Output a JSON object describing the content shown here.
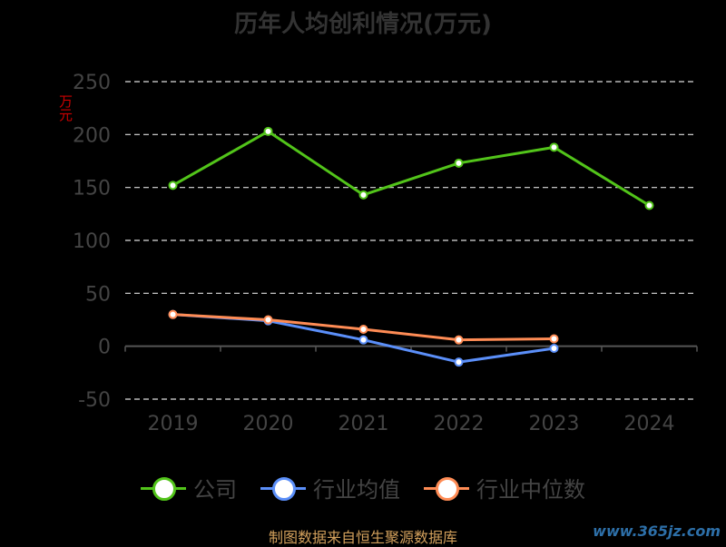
{
  "chart_data": {
    "type": "line",
    "title": "历年人均创利情况(万元)",
    "unit_label": "万元",
    "categories": [
      "2019",
      "2020",
      "2021",
      "2022",
      "2023",
      "2024"
    ],
    "ylim": [
      -50,
      250
    ],
    "yticks": [
      -50,
      0,
      50,
      100,
      150,
      200,
      250
    ],
    "grid": true,
    "legend_position": "bottom-center",
    "series": [
      {
        "name": "公司",
        "color": "#52c41a",
        "values": [
          152,
          203,
          143,
          173,
          188,
          133
        ]
      },
      {
        "name": "行业均值",
        "color": "#5b8ff9",
        "values": [
          30,
          24,
          6,
          -15,
          -2,
          null
        ]
      },
      {
        "name": "行业中位数",
        "color": "#ff8c55",
        "values": [
          30,
          25,
          16,
          6,
          7,
          null
        ]
      }
    ]
  },
  "footer": {
    "source": "制图数据来自恒生聚源数据库",
    "watermark": "www.365jz.com"
  }
}
